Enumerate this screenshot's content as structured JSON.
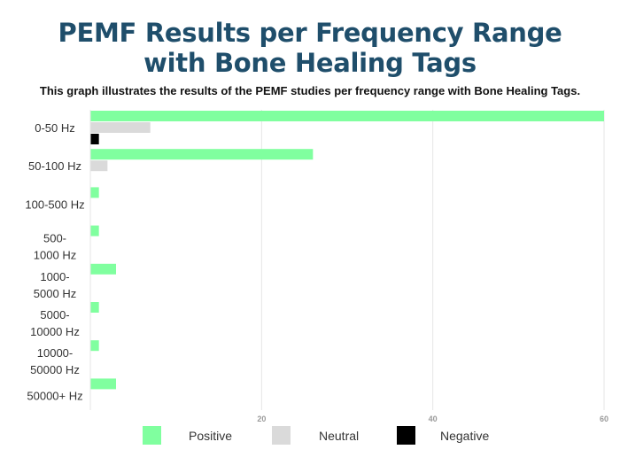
{
  "chart_data": {
    "type": "bar",
    "orientation": "horizontal",
    "title_line1": "PEMF Results per Frequency Range",
    "title_line2": "with Bone Healing Tags",
    "subtitle": "This graph illustrates the results of the PEMF studies per frequency range with Bone Healing Tags.",
    "categories": [
      [
        "0-50 Hz"
      ],
      [
        "50-100 Hz"
      ],
      [
        "100-500 Hz"
      ],
      [
        "500-",
        "1000 Hz"
      ],
      [
        "1000-",
        "5000 Hz"
      ],
      [
        "5000-",
        "10000 Hz"
      ],
      [
        "10000-",
        "50000 Hz"
      ],
      [
        "50000+ Hz"
      ]
    ],
    "series": [
      {
        "name": "Positive",
        "color": "#80ff9f",
        "values": [
          60,
          26,
          1,
          1,
          3,
          1,
          1,
          3
        ]
      },
      {
        "name": "Neutral",
        "color": "#dadada",
        "values": [
          7,
          2,
          0,
          0,
          0,
          0,
          0,
          0
        ]
      },
      {
        "name": "Negative",
        "color": "#000000",
        "values": [
          1,
          0,
          0,
          0,
          0,
          0,
          0,
          0
        ]
      }
    ],
    "xlim": [
      0,
      60
    ],
    "xticks": [
      "20",
      "40",
      "60"
    ],
    "grid": true,
    "legend_position": "bottom"
  }
}
